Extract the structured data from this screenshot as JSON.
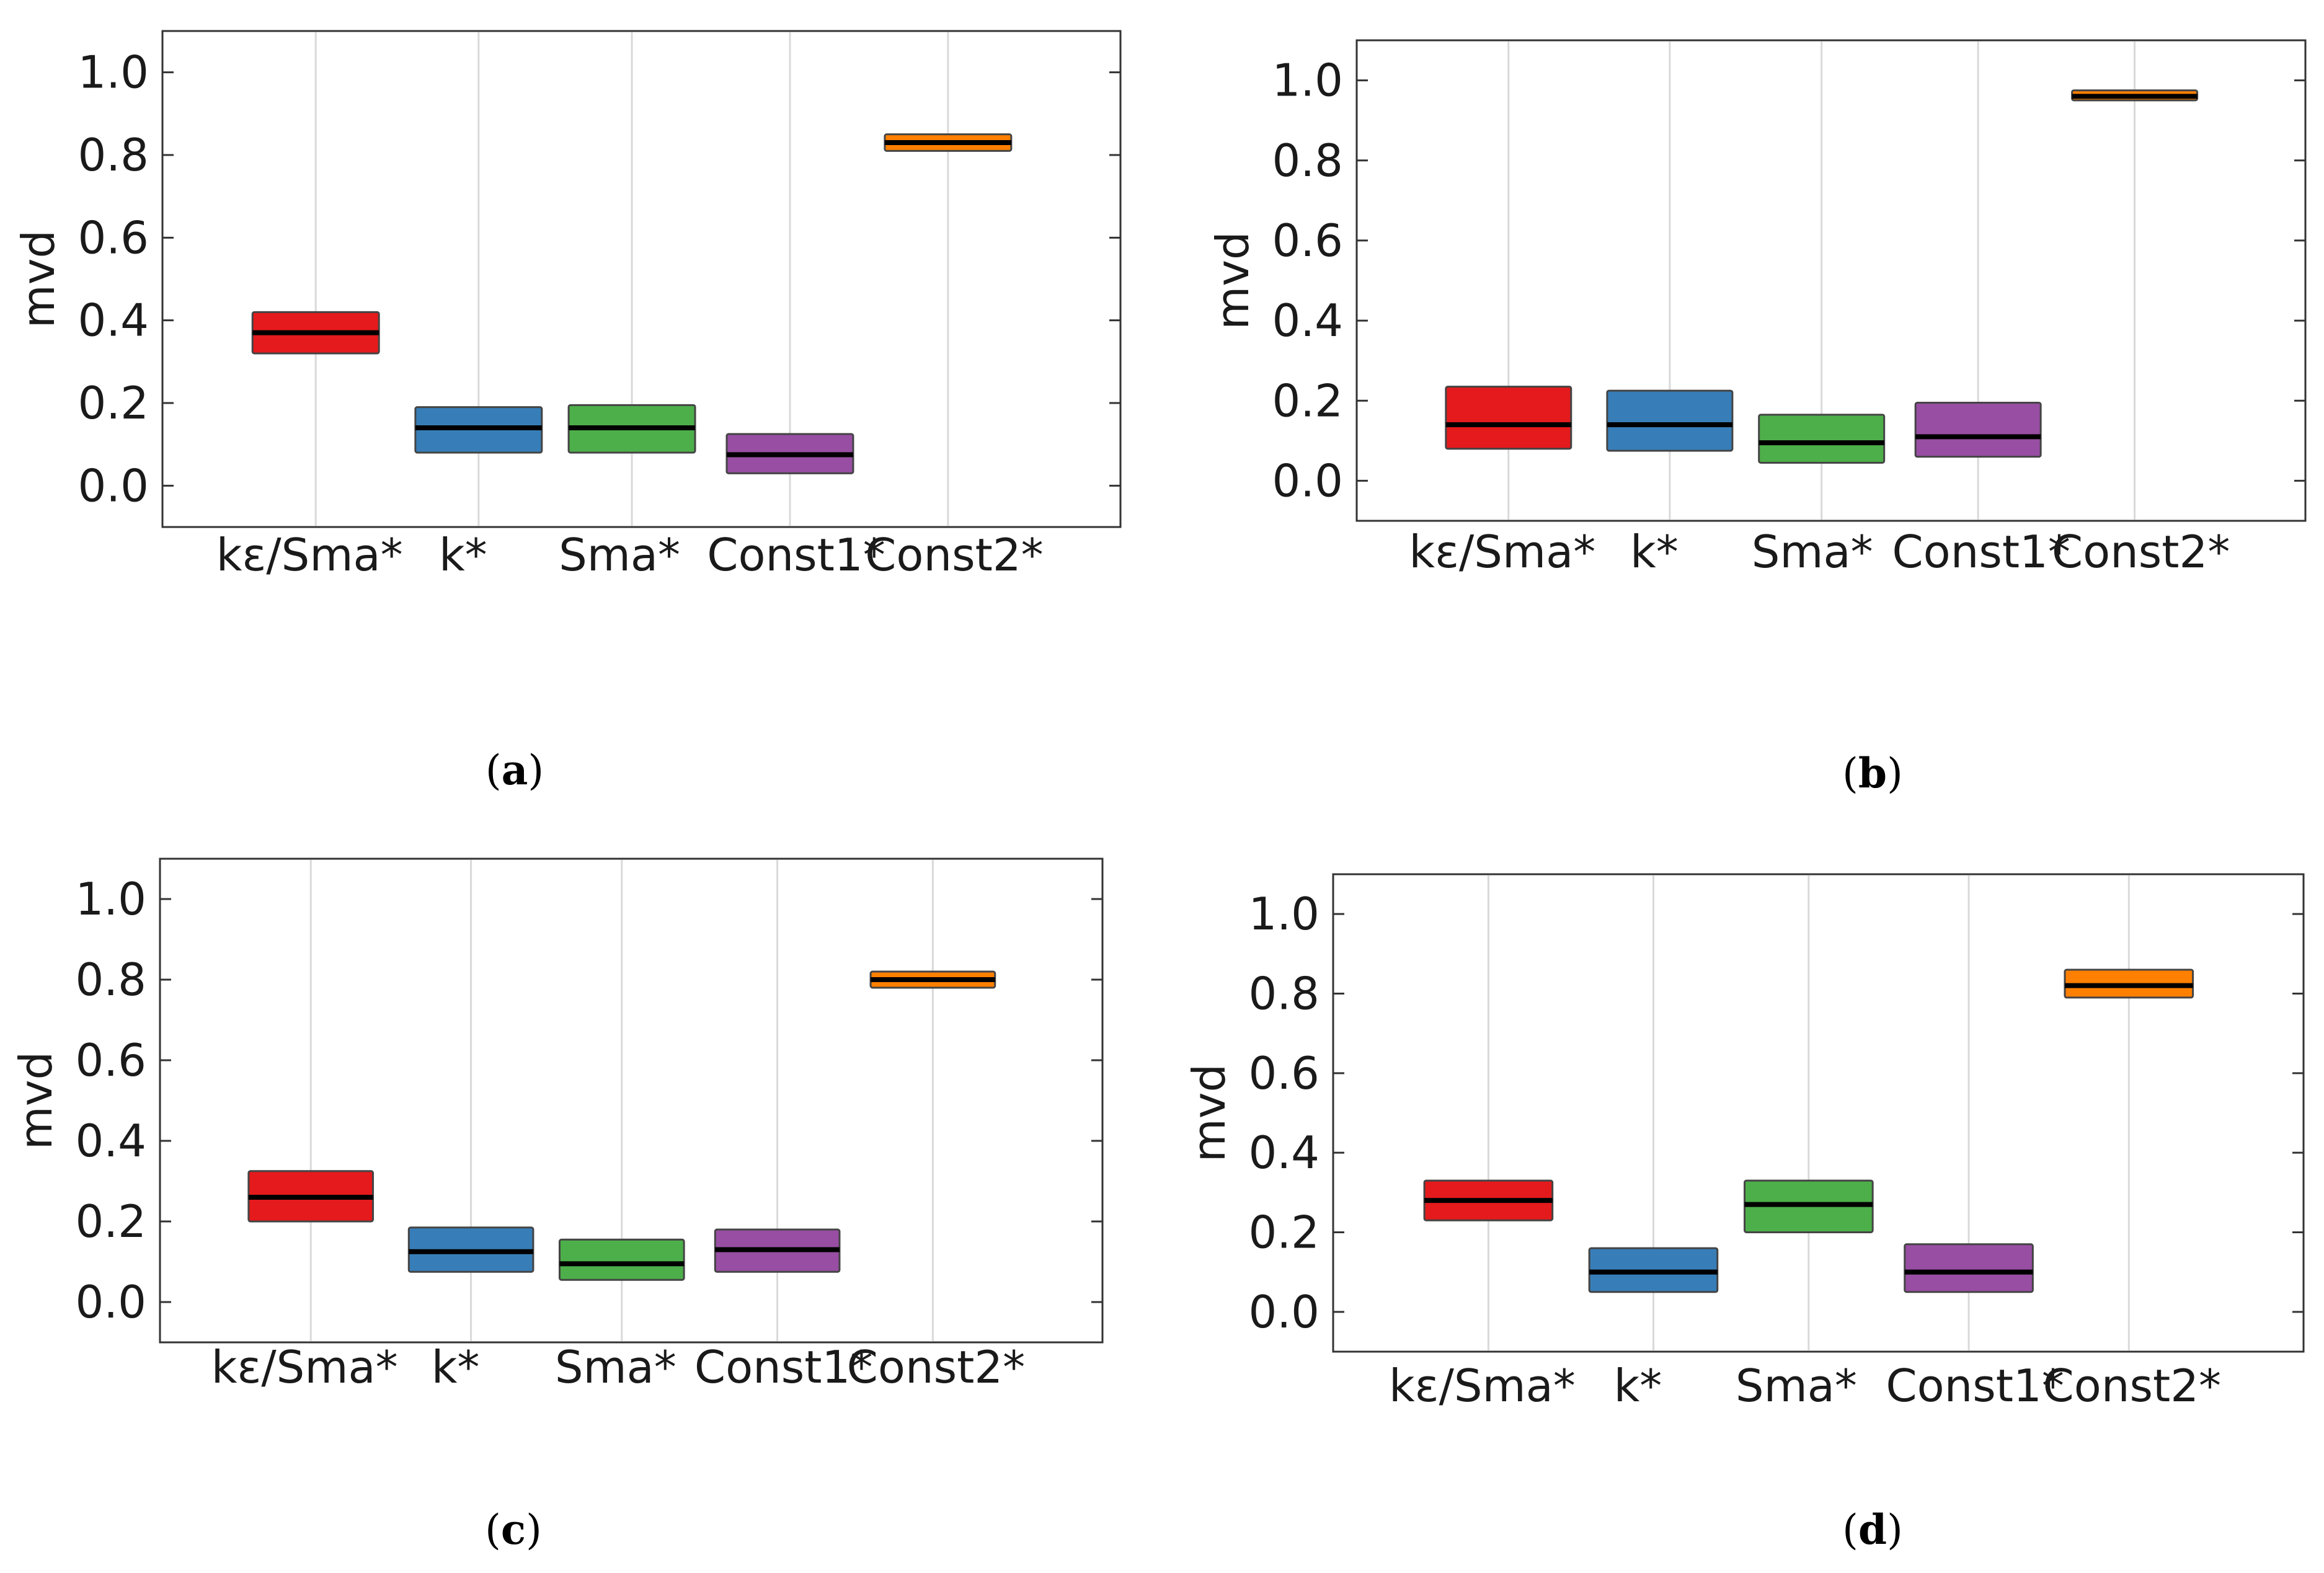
{
  "figure": {
    "captions": [
      "a",
      "b",
      "c",
      "d"
    ]
  },
  "chart_data": [
    {
      "panel": "a",
      "type": "box",
      "ylabel": "mvd",
      "xlabel": "",
      "ylim": [
        -0.1,
        1.1
      ],
      "yticks": [
        0.0,
        0.2,
        0.4,
        0.6,
        0.8,
        1.0
      ],
      "ytick_labels": [
        "0.0",
        "0.2",
        "0.4",
        "0.6",
        "0.8",
        "1.0"
      ],
      "categories": [
        "kε/Sma*",
        "k*",
        "Sma*",
        "Const1*",
        "Const2*"
      ],
      "colors": [
        "#e41a1c",
        "#377eb8",
        "#4daf4a",
        "#984ea3",
        "#ff7f00"
      ],
      "boxes": [
        {
          "q1": 0.32,
          "median": 0.37,
          "q3": 0.42
        },
        {
          "q1": 0.08,
          "median": 0.14,
          "q3": 0.19
        },
        {
          "q1": 0.08,
          "median": 0.14,
          "q3": 0.195
        },
        {
          "q1": 0.03,
          "median": 0.075,
          "q3": 0.125
        },
        {
          "q1": 0.81,
          "median": 0.83,
          "q3": 0.85
        }
      ]
    },
    {
      "panel": "b",
      "type": "box",
      "ylabel": "mvd",
      "xlabel": "",
      "ylim": [
        -0.1,
        1.1
      ],
      "yticks": [
        0.0,
        0.2,
        0.4,
        0.6,
        0.8,
        1.0
      ],
      "ytick_labels": [
        "0.0",
        "0.2",
        "0.4",
        "0.6",
        "0.8",
        "1.0"
      ],
      "categories": [
        "kε/Sma*",
        "k*",
        "Sma*",
        "Const1*",
        "Const2*"
      ],
      "colors": [
        "#e41a1c",
        "#377eb8",
        "#4daf4a",
        "#984ea3",
        "#ff7f00"
      ],
      "boxes": [
        {
          "q1": 0.08,
          "median": 0.14,
          "q3": 0.235
        },
        {
          "q1": 0.075,
          "median": 0.14,
          "q3": 0.225
        },
        {
          "q1": 0.045,
          "median": 0.095,
          "q3": 0.165
        },
        {
          "q1": 0.06,
          "median": 0.11,
          "q3": 0.195
        },
        {
          "q1": 0.95,
          "median": 0.96,
          "q3": 0.975
        }
      ]
    },
    {
      "panel": "c",
      "type": "box",
      "ylabel": "mvd",
      "xlabel": "",
      "ylim": [
        -0.1,
        1.1
      ],
      "yticks": [
        0.0,
        0.2,
        0.4,
        0.6,
        0.8,
        1.0
      ],
      "ytick_labels": [
        "0.0",
        "0.2",
        "0.4",
        "0.6",
        "0.8",
        "1.0"
      ],
      "categories": [
        "kε/Sma*",
        "k*",
        "Sma*",
        "Const1*",
        "Const2*"
      ],
      "colors": [
        "#e41a1c",
        "#377eb8",
        "#4daf4a",
        "#984ea3",
        "#ff7f00"
      ],
      "boxes": [
        {
          "q1": 0.2,
          "median": 0.26,
          "q3": 0.325
        },
        {
          "q1": 0.075,
          "median": 0.125,
          "q3": 0.185
        },
        {
          "q1": 0.055,
          "median": 0.095,
          "q3": 0.155
        },
        {
          "q1": 0.075,
          "median": 0.13,
          "q3": 0.18
        },
        {
          "q1": 0.78,
          "median": 0.8,
          "q3": 0.82
        }
      ]
    },
    {
      "panel": "d",
      "type": "box",
      "ylabel": "mvd",
      "xlabel": "",
      "ylim": [
        -0.1,
        1.1
      ],
      "yticks": [
        0.0,
        0.2,
        0.4,
        0.6,
        0.8,
        1.0
      ],
      "ytick_labels": [
        "0.0",
        "0.2",
        "0.4",
        "0.6",
        "0.8",
        "1.0"
      ],
      "categories": [
        "kε/Sma*",
        "k*",
        "Sma*",
        "Const1*",
        "Const2*"
      ],
      "colors": [
        "#e41a1c",
        "#377eb8",
        "#4daf4a",
        "#984ea3",
        "#ff7f00"
      ],
      "boxes": [
        {
          "q1": 0.23,
          "median": 0.28,
          "q3": 0.33
        },
        {
          "q1": 0.05,
          "median": 0.1,
          "q3": 0.16
        },
        {
          "q1": 0.2,
          "median": 0.27,
          "q3": 0.33
        },
        {
          "q1": 0.05,
          "median": 0.1,
          "q3": 0.17
        },
        {
          "q1": 0.79,
          "median": 0.82,
          "q3": 0.86
        }
      ]
    }
  ]
}
